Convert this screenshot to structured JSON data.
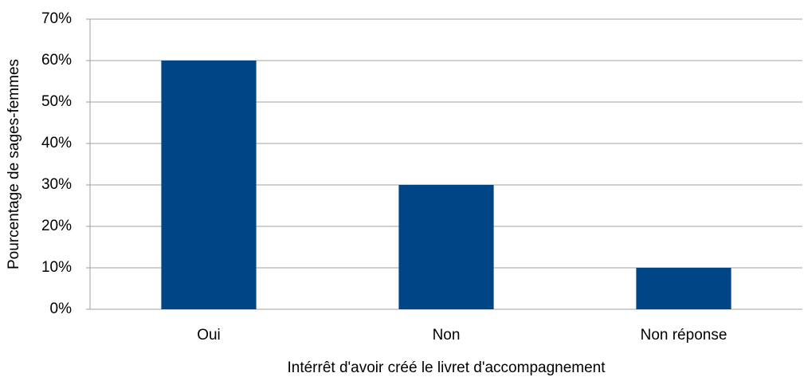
{
  "chart_data": {
    "type": "bar",
    "x_label": "Intérrêt d'avoir créé le livret d'accompagnement",
    "y_label": "Pourcentage de sages-femmes",
    "categories": [
      "Oui",
      "Non",
      "Non réponse"
    ],
    "values": [
      60,
      30,
      10
    ],
    "color": "#004586",
    "ylim": [
      0,
      70
    ],
    "yticks": [
      {
        "value": 0,
        "label": "0%"
      },
      {
        "value": 10,
        "label": "10%"
      },
      {
        "value": 20,
        "label": "20%"
      },
      {
        "value": 30,
        "label": "30%"
      },
      {
        "value": 40,
        "label": "40%"
      },
      {
        "value": 50,
        "label": "50%"
      },
      {
        "value": 60,
        "label": "60%"
      },
      {
        "value": 70,
        "label": "70%"
      }
    ],
    "grid": true
  }
}
